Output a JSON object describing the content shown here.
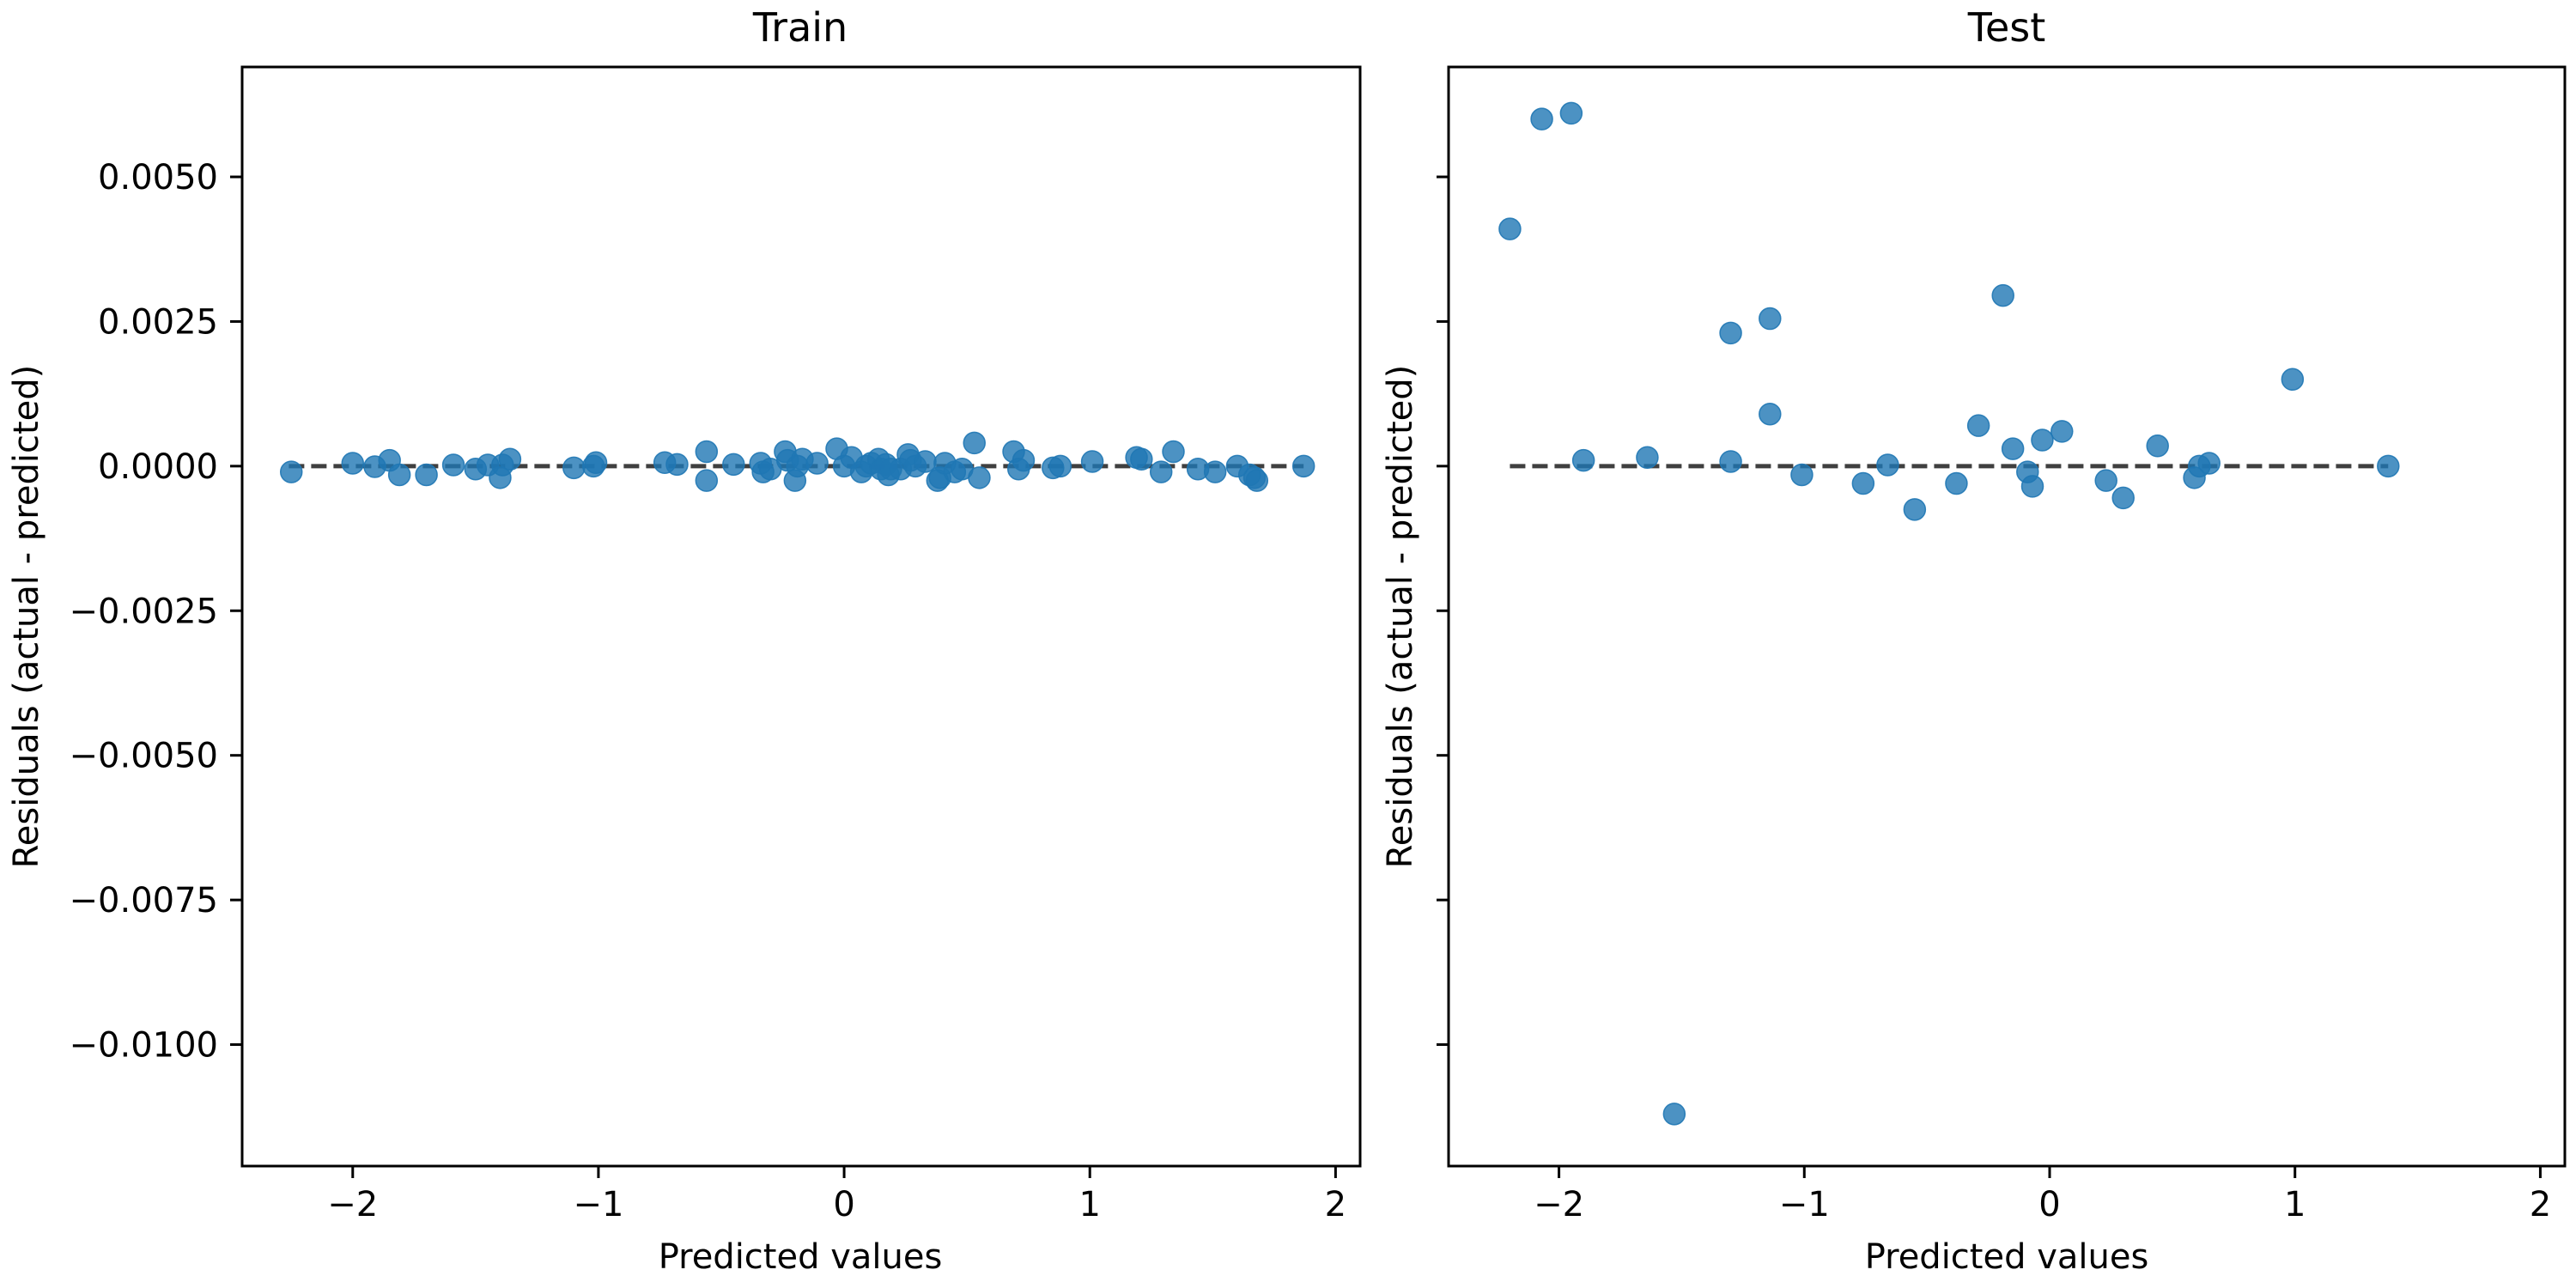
{
  "colors": {
    "points": "#1f77b4",
    "zero_line": "#3f3f3f",
    "axes": "#000000"
  },
  "chart_data": [
    {
      "type": "scatter",
      "title": "Train",
      "xlabel": "Predicted values",
      "ylabel": "Residuals (actual - predicted)",
      "xlim": [
        -2.45,
        2.1
      ],
      "ylim": [
        -0.0121,
        0.0069
      ],
      "xticks": [
        -2,
        -1,
        0,
        1,
        2
      ],
      "xtick_labels": [
        "−2",
        "−1",
        "0",
        "1",
        "2"
      ],
      "yticks": [
        0.005,
        0.0025,
        0.0,
        -0.0025,
        -0.005,
        -0.0075,
        -0.01
      ],
      "ytick_labels": [
        "0.0050",
        "0.0025",
        "0.0000",
        "−0.0025",
        "−0.0050",
        "−0.0075",
        "−0.0100"
      ],
      "show_ytick_labels": true,
      "grid": false,
      "zero_line": {
        "y": 0.0,
        "x_range": [
          -2.26,
          1.87
        ],
        "style": "dashed"
      },
      "series": [
        {
          "x": [
            -2.25,
            -2.0,
            -1.91,
            -1.85,
            -1.81,
            -1.7,
            -1.59,
            -1.5,
            -1.45,
            -1.4,
            -1.39,
            -1.36,
            -1.1,
            -1.02,
            -1.01,
            -0.73,
            -0.68,
            -0.56,
            -0.56,
            -0.45,
            -0.34,
            -0.33,
            -0.3,
            -0.24,
            -0.23,
            -0.2,
            -0.19,
            -0.17,
            -0.11,
            -0.03,
            0.0,
            0.03,
            0.07,
            0.09,
            0.11,
            0.14,
            0.15,
            0.17,
            0.18,
            0.19,
            0.23,
            0.26,
            0.27,
            0.29,
            0.33,
            0.38,
            0.39,
            0.41,
            0.45,
            0.48,
            0.53,
            0.55,
            0.69,
            0.71,
            0.73,
            0.85,
            0.88,
            1.01,
            1.19,
            1.21,
            1.29,
            1.34,
            1.44,
            1.51,
            1.6,
            1.65,
            1.67,
            1.68,
            1.87
          ],
          "y": [
            -0.0001,
            5e-05,
            -1e-05,
            0.0001,
            -0.00015,
            -0.00015,
            2e-05,
            -5e-05,
            2e-05,
            -0.0002,
            2e-05,
            0.00012,
            -3e-05,
            0.0,
            6e-05,
            6e-05,
            3e-05,
            0.00025,
            -0.00025,
            3e-05,
            5e-05,
            -0.0001,
            -5e-05,
            0.00025,
            0.0001,
            -0.00025,
            0.0,
            0.00012,
            5e-05,
            0.0003,
            0.0,
            0.00015,
            -0.0001,
            0.0,
            5e-05,
            0.00012,
            -5e-05,
            3e-05,
            -0.00015,
            -5e-05,
            -5e-05,
            0.0002,
            0.0001,
            0.0,
            8e-05,
            -0.00025,
            -0.0002,
            5e-05,
            -0.0001,
            -5e-05,
            0.0004,
            -0.0002,
            0.00025,
            -5e-05,
            0.0001,
            -3e-05,
            0.0,
            8e-05,
            0.00015,
            0.00012,
            -0.0001,
            0.00025,
            -5e-05,
            -0.0001,
            0.0,
            -0.00015,
            -0.0002,
            -0.00025,
            0.0
          ]
        }
      ]
    },
    {
      "type": "scatter",
      "title": "Test",
      "xlabel": "Predicted values",
      "ylabel": "Residuals (actual - predicted)",
      "xlim": [
        -2.45,
        2.1
      ],
      "ylim": [
        -0.0121,
        0.0069
      ],
      "xticks": [
        -2,
        -1,
        0,
        1,
        2
      ],
      "xtick_labels": [
        "−2",
        "−1",
        "0",
        "1",
        "2"
      ],
      "yticks": [
        0.005,
        0.0025,
        0.0,
        -0.0025,
        -0.005,
        -0.0075,
        -0.01
      ],
      "ytick_labels": [
        "",
        "",
        "",
        "",
        "",
        "",
        ""
      ],
      "show_ytick_labels": false,
      "grid": false,
      "zero_line": {
        "y": 0.0,
        "x_range": [
          -2.2,
          1.38
        ],
        "style": "dashed"
      },
      "series": [
        {
          "x": [
            -2.2,
            -2.07,
            -1.95,
            -1.9,
            -1.64,
            -1.53,
            -1.3,
            -1.3,
            -1.14,
            -1.14,
            -1.01,
            -0.76,
            -0.66,
            -0.55,
            -0.38,
            -0.29,
            -0.19,
            -0.15,
            -0.09,
            -0.07,
            -0.03,
            0.05,
            0.23,
            0.3,
            0.44,
            0.59,
            0.61,
            0.65,
            0.99,
            1.38
          ],
          "y": [
            0.0041,
            0.006,
            0.0061,
            0.0001,
            0.00015,
            -0.0112,
            0.0023,
            8e-05,
            0.00255,
            0.0009,
            -0.00015,
            -0.0003,
            2e-05,
            -0.00075,
            -0.0003,
            0.0007,
            0.00295,
            0.0003,
            -0.0001,
            -0.00035,
            0.00045,
            0.0006,
            -0.00025,
            -0.00055,
            0.00035,
            -0.0002,
            0.0,
            5e-05,
            0.0015,
            0.0
          ]
        }
      ]
    }
  ]
}
